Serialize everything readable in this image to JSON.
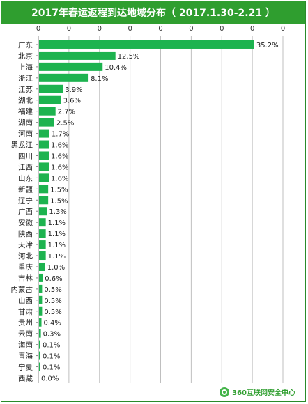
{
  "title": "2017年春运返程到达地域分布（ 2017.1.30-2.21 ）",
  "footer": {
    "brand": "360互联网安全中心",
    "icon": "360-logo-icon"
  },
  "colors": {
    "bar": "#1db34f",
    "grid": "#bfbfbf",
    "title_bg": "#2f9e2f"
  },
  "chart_data": {
    "type": "bar",
    "orientation": "horizontal",
    "title": "2017年春运返程到达地域分布（ 2017.1.30-2.21 ）",
    "top_axis_ticks": [
      "0",
      "0",
      "0",
      "0",
      "0",
      "0",
      "0",
      "0",
      "0"
    ],
    "xlim": [
      0,
      40
    ],
    "grid": true,
    "categories": [
      "广东",
      "北京",
      "上海",
      "浙江",
      "江苏",
      "湖北",
      "福建",
      "湖南",
      "河南",
      "黑龙江",
      "四川",
      "江西",
      "山东",
      "新疆",
      "辽宁",
      "广西",
      "安徽",
      "陕西",
      "天津",
      "河北",
      "重庆",
      "吉林",
      "内蒙古",
      "山西",
      "甘肃",
      "贵州",
      "云南",
      "海南",
      "青海",
      "宁夏",
      "西藏"
    ],
    "values": [
      35.2,
      12.5,
      10.4,
      8.1,
      3.9,
      3.6,
      2.7,
      2.5,
      1.7,
      1.6,
      1.6,
      1.6,
      1.6,
      1.5,
      1.5,
      1.3,
      1.1,
      1.1,
      1.1,
      1.1,
      1.0,
      0.6,
      0.5,
      0.5,
      0.5,
      0.4,
      0.3,
      0.1,
      0.1,
      0.1,
      0.0
    ],
    "value_labels": [
      "35.2%",
      "12.5%",
      "10.4%",
      "8.1%",
      "3.9%",
      "3.6%",
      "2.7%",
      "2.5%",
      "1.7%",
      "1.6%",
      "1.6%",
      "1.6%",
      "1.6%",
      "1.5%",
      "1.5%",
      "1.3%",
      "1.1%",
      "1.1%",
      "1.1%",
      "1.1%",
      "1.0%",
      "0.6%",
      "0.5%",
      "0.5%",
      "0.5%",
      "0.4%",
      "0.3%",
      "0.1%",
      "0.1%",
      "0.1%",
      "0.0%"
    ]
  }
}
